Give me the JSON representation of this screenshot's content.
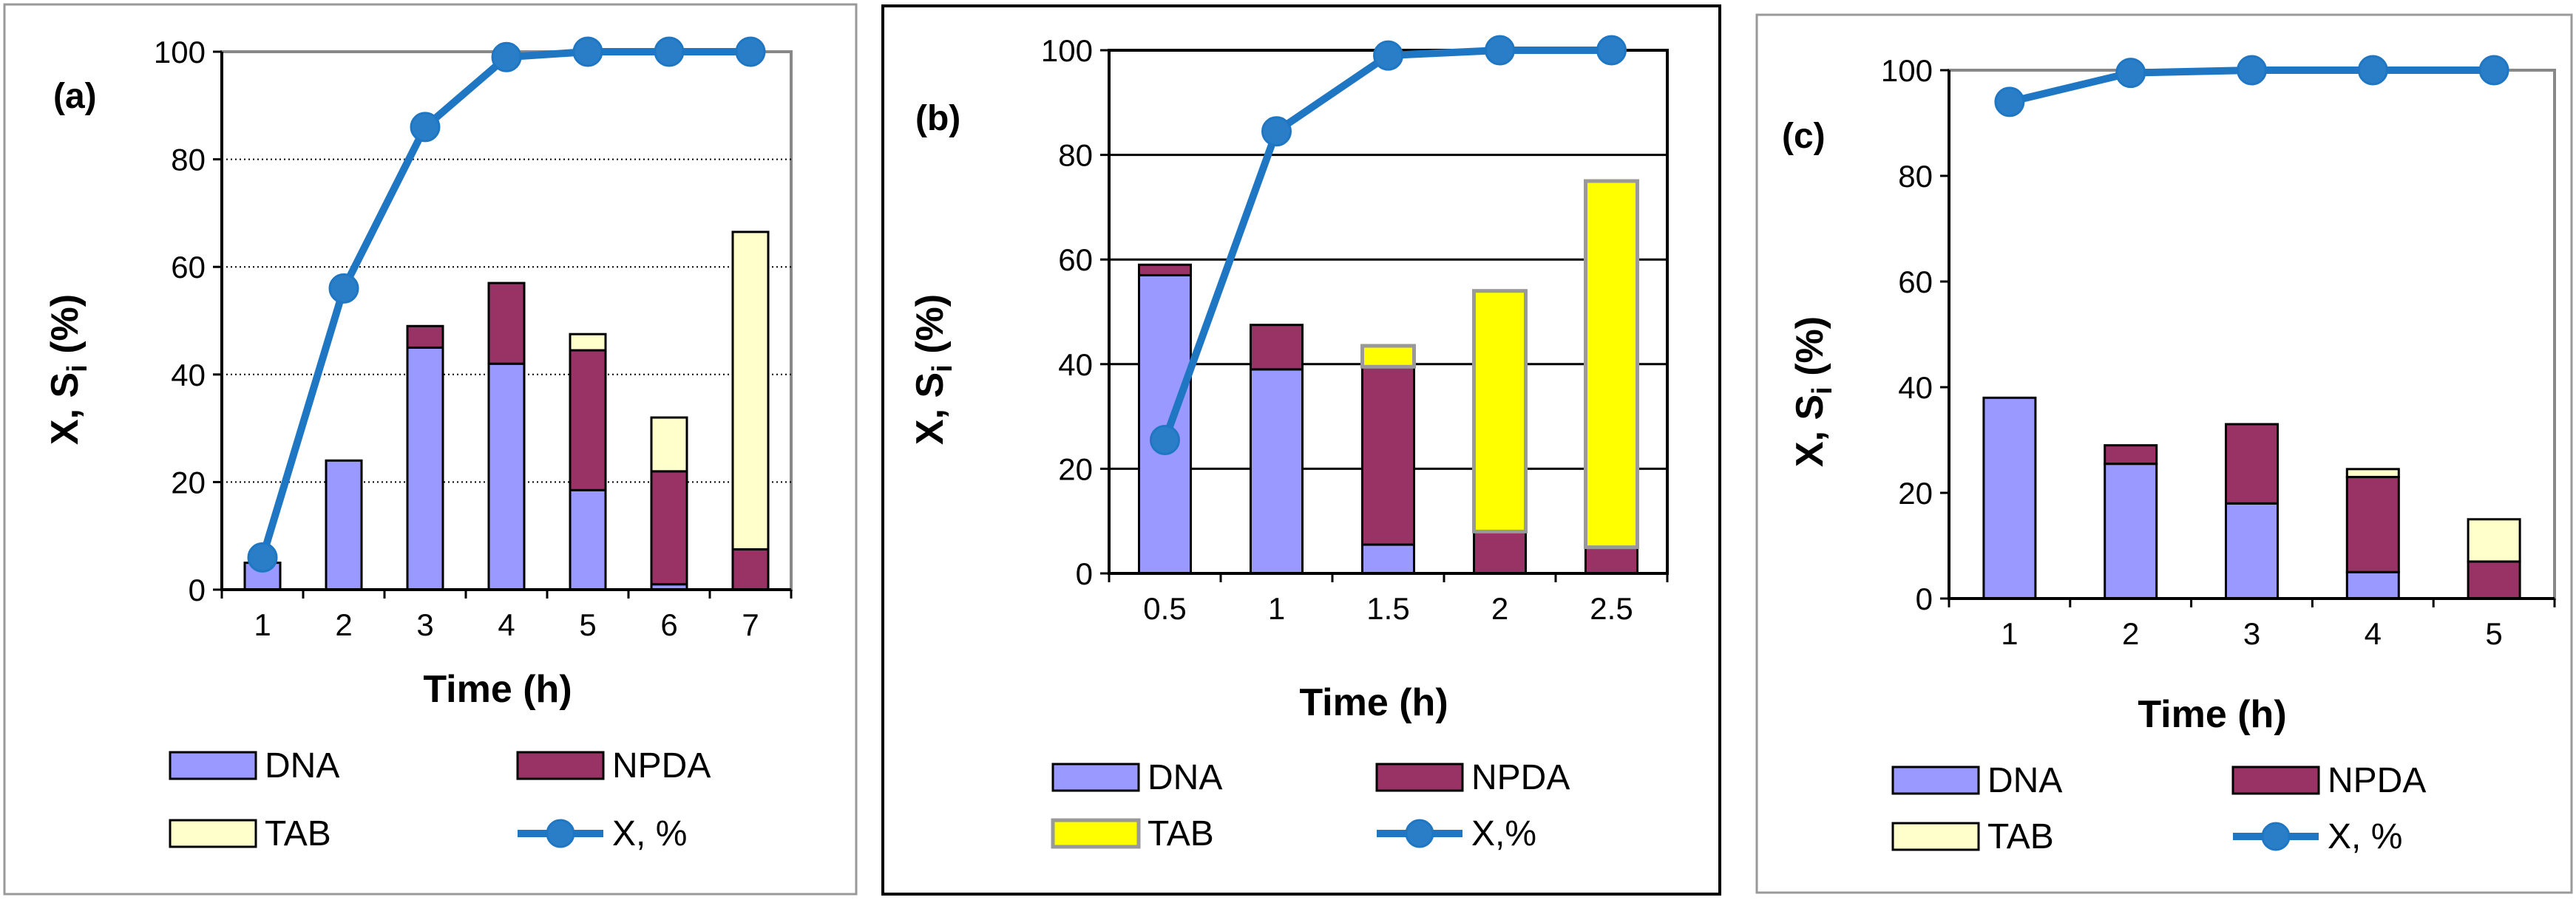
{
  "colors": {
    "dna": "#9999ff",
    "npda": "#993366",
    "tab_pale": "#ffffcc",
    "tab_yellow": "#ffff00",
    "line": "#1f77c4",
    "marker": "#2a7ec8"
  },
  "legend_labels": {
    "dna": "DNA",
    "npda": "NPDA",
    "tab": "TAB"
  },
  "chart_data": [
    {
      "id": "a",
      "type": "bar",
      "panel_label": "(a)",
      "title": "",
      "xlabel": "Time (h)",
      "ylabel_main": "X, S",
      "ylabel_sub": "i",
      "ylabel_tail": " (%)",
      "ylim": [
        0,
        100
      ],
      "yticks": [
        "0",
        "20",
        "40",
        "60",
        "80",
        "100"
      ],
      "categories": [
        "1",
        "2",
        "3",
        "4",
        "5",
        "6",
        "7"
      ],
      "series": [
        {
          "name": "DNA",
          "values": [
            5,
            24,
            45,
            42,
            18.5,
            1,
            0
          ]
        },
        {
          "name": "NPDA",
          "values": [
            0,
            0,
            4,
            15,
            26,
            21,
            7.5
          ]
        },
        {
          "name": "TAB",
          "values": [
            0,
            0,
            0,
            0,
            3,
            10,
            59
          ]
        }
      ],
      "line": {
        "name": "X, %",
        "values": [
          6,
          56,
          86,
          99,
          100,
          100,
          100
        ]
      },
      "legend_line_label": "X, %"
    },
    {
      "id": "b",
      "type": "bar",
      "panel_label": "(b)",
      "title": "",
      "xlabel": "Time (h)",
      "ylabel_main": "X, S",
      "ylabel_sub": "i",
      "ylabel_tail": " (%)",
      "ylim": [
        0,
        100
      ],
      "yticks": [
        "0",
        "20",
        "40",
        "60",
        "80",
        "100"
      ],
      "categories": [
        "0.5",
        "1",
        "1.5",
        "2",
        "2.5"
      ],
      "series": [
        {
          "name": "DNA",
          "values": [
            57,
            39,
            5.5,
            0,
            0
          ]
        },
        {
          "name": "NPDA",
          "values": [
            2,
            8.5,
            34,
            8,
            5
          ]
        },
        {
          "name": "TAB",
          "values": [
            0,
            0,
            4,
            46,
            70
          ]
        }
      ],
      "line": {
        "name": "X,%",
        "values": [
          25.5,
          84.5,
          99,
          100,
          100
        ]
      },
      "legend_line_label": "X,%"
    },
    {
      "id": "c",
      "type": "bar",
      "panel_label": "(c)",
      "title": "",
      "xlabel": "Time (h)",
      "ylabel_main": "X, S",
      "ylabel_sub": "i",
      "ylabel_tail": " (%)",
      "ylim": [
        0,
        100
      ],
      "yticks": [
        "0",
        "20",
        "40",
        "60",
        "80",
        "100"
      ],
      "categories": [
        "1",
        "2",
        "3",
        "4",
        "5"
      ],
      "series": [
        {
          "name": "DNA",
          "values": [
            38,
            25.5,
            18,
            5,
            0
          ]
        },
        {
          "name": "NPDA",
          "values": [
            0,
            3.5,
            15,
            18,
            7
          ]
        },
        {
          "name": "TAB",
          "values": [
            0,
            0,
            0,
            1.5,
            8
          ]
        }
      ],
      "line": {
        "name": "X, %",
        "values": [
          94,
          99.5,
          100,
          100,
          100
        ]
      },
      "legend_line_label": "X, %"
    }
  ]
}
